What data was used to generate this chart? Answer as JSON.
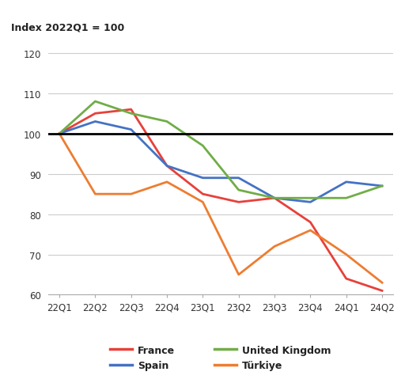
{
  "x_labels": [
    "22Q1",
    "22Q2",
    "22Q3",
    "22Q4",
    "23Q1",
    "23Q2",
    "23Q3",
    "23Q4",
    "24Q1",
    "24Q2"
  ],
  "france": [
    100,
    105,
    106,
    92,
    85,
    83,
    84,
    78,
    64,
    61
  ],
  "spain": [
    100,
    103,
    101,
    92,
    89,
    89,
    84,
    83,
    88,
    87
  ],
  "uk": [
    100,
    108,
    105,
    103,
    97,
    86,
    84,
    84,
    84,
    87
  ],
  "turkiye": [
    100,
    85,
    85,
    88,
    83,
    65,
    72,
    76,
    70,
    63
  ],
  "france_color": "#e8403a",
  "spain_color": "#4472c4",
  "uk_color": "#70ad47",
  "turkiye_color": "#ed7d31",
  "reference_line_y": 100,
  "y_label_line1": "Index 2022Q1 = 100",
  "y_min": 60,
  "y_max": 120,
  "y_ticks": [
    60,
    70,
    80,
    90,
    100,
    110,
    120
  ],
  "legend": [
    {
      "label": "France",
      "color": "#e8403a"
    },
    {
      "label": "Spain",
      "color": "#4472c4"
    },
    {
      "label": "United Kingdom",
      "color": "#70ad47"
    },
    {
      "label": "Türkiye",
      "color": "#ed7d31"
    }
  ],
  "bg_color": "#ffffff",
  "grid_color": "#cccccc",
  "spine_color": "#aaaaaa"
}
